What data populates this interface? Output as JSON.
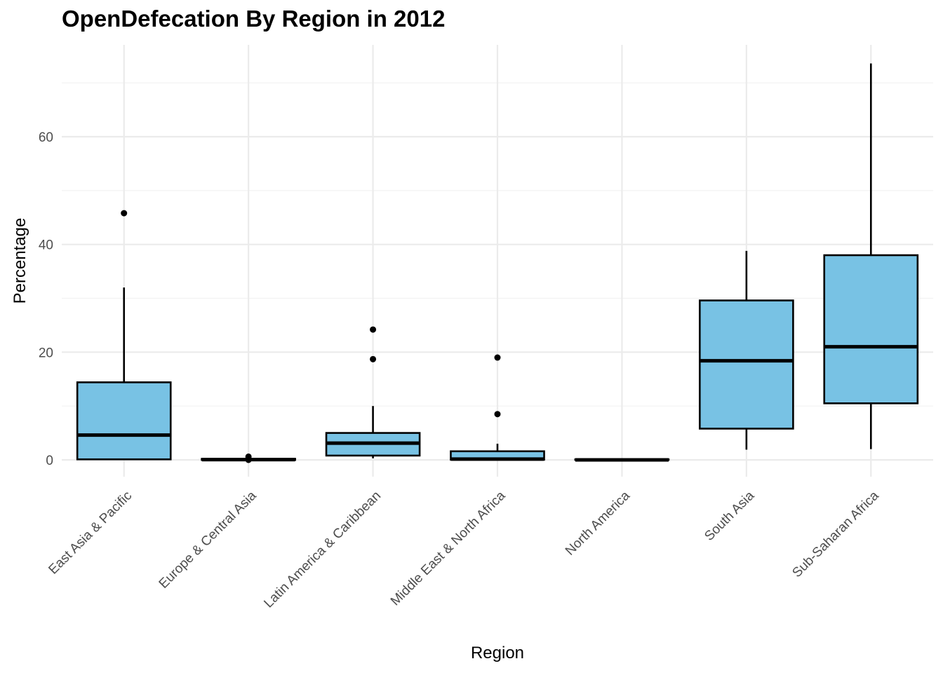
{
  "chart_data": {
    "type": "boxplot",
    "title": "OpenDefecation By Region in 2012",
    "xlabel": "Region",
    "ylabel": "Percentage",
    "ylim": [
      -3,
      76
    ],
    "yticks": [
      0,
      20,
      40,
      60
    ],
    "grid": true,
    "box_color": "#78c2e4",
    "categories": [
      "East Asia & Pacific",
      "Europe & Central Asia",
      "Latin America & Caribbean",
      "Middle East & North Africa",
      "North America",
      "South Asia",
      "Sub-Saharan Africa"
    ],
    "boxes": [
      {
        "min": 0,
        "q1": 0.1,
        "median": 4.6,
        "q3": 14.4,
        "max": 32.0,
        "outliers": [
          45.8
        ]
      },
      {
        "min": 0,
        "q1": 0,
        "median": 0.05,
        "q3": 0.2,
        "max": 0.3,
        "outliers": [
          0.6,
          0.0
        ]
      },
      {
        "min": 0.3,
        "q1": 0.8,
        "median": 3.1,
        "q3": 5.0,
        "max": 10.0,
        "outliers": [
          18.7,
          24.2
        ]
      },
      {
        "min": 0,
        "q1": 0.05,
        "median": 0.15,
        "q3": 1.6,
        "max": 3.0,
        "outliers": [
          8.5,
          19.0
        ]
      },
      {
        "min": 0,
        "q1": 0,
        "median": 0,
        "q3": 0.1,
        "max": 0.1,
        "outliers": []
      },
      {
        "min": 1.9,
        "q1": 5.8,
        "median": 18.4,
        "q3": 29.6,
        "max": 38.8,
        "outliers": []
      },
      {
        "min": 2.0,
        "q1": 10.5,
        "median": 21.0,
        "q3": 38.0,
        "max": 73.6,
        "outliers": []
      }
    ]
  }
}
